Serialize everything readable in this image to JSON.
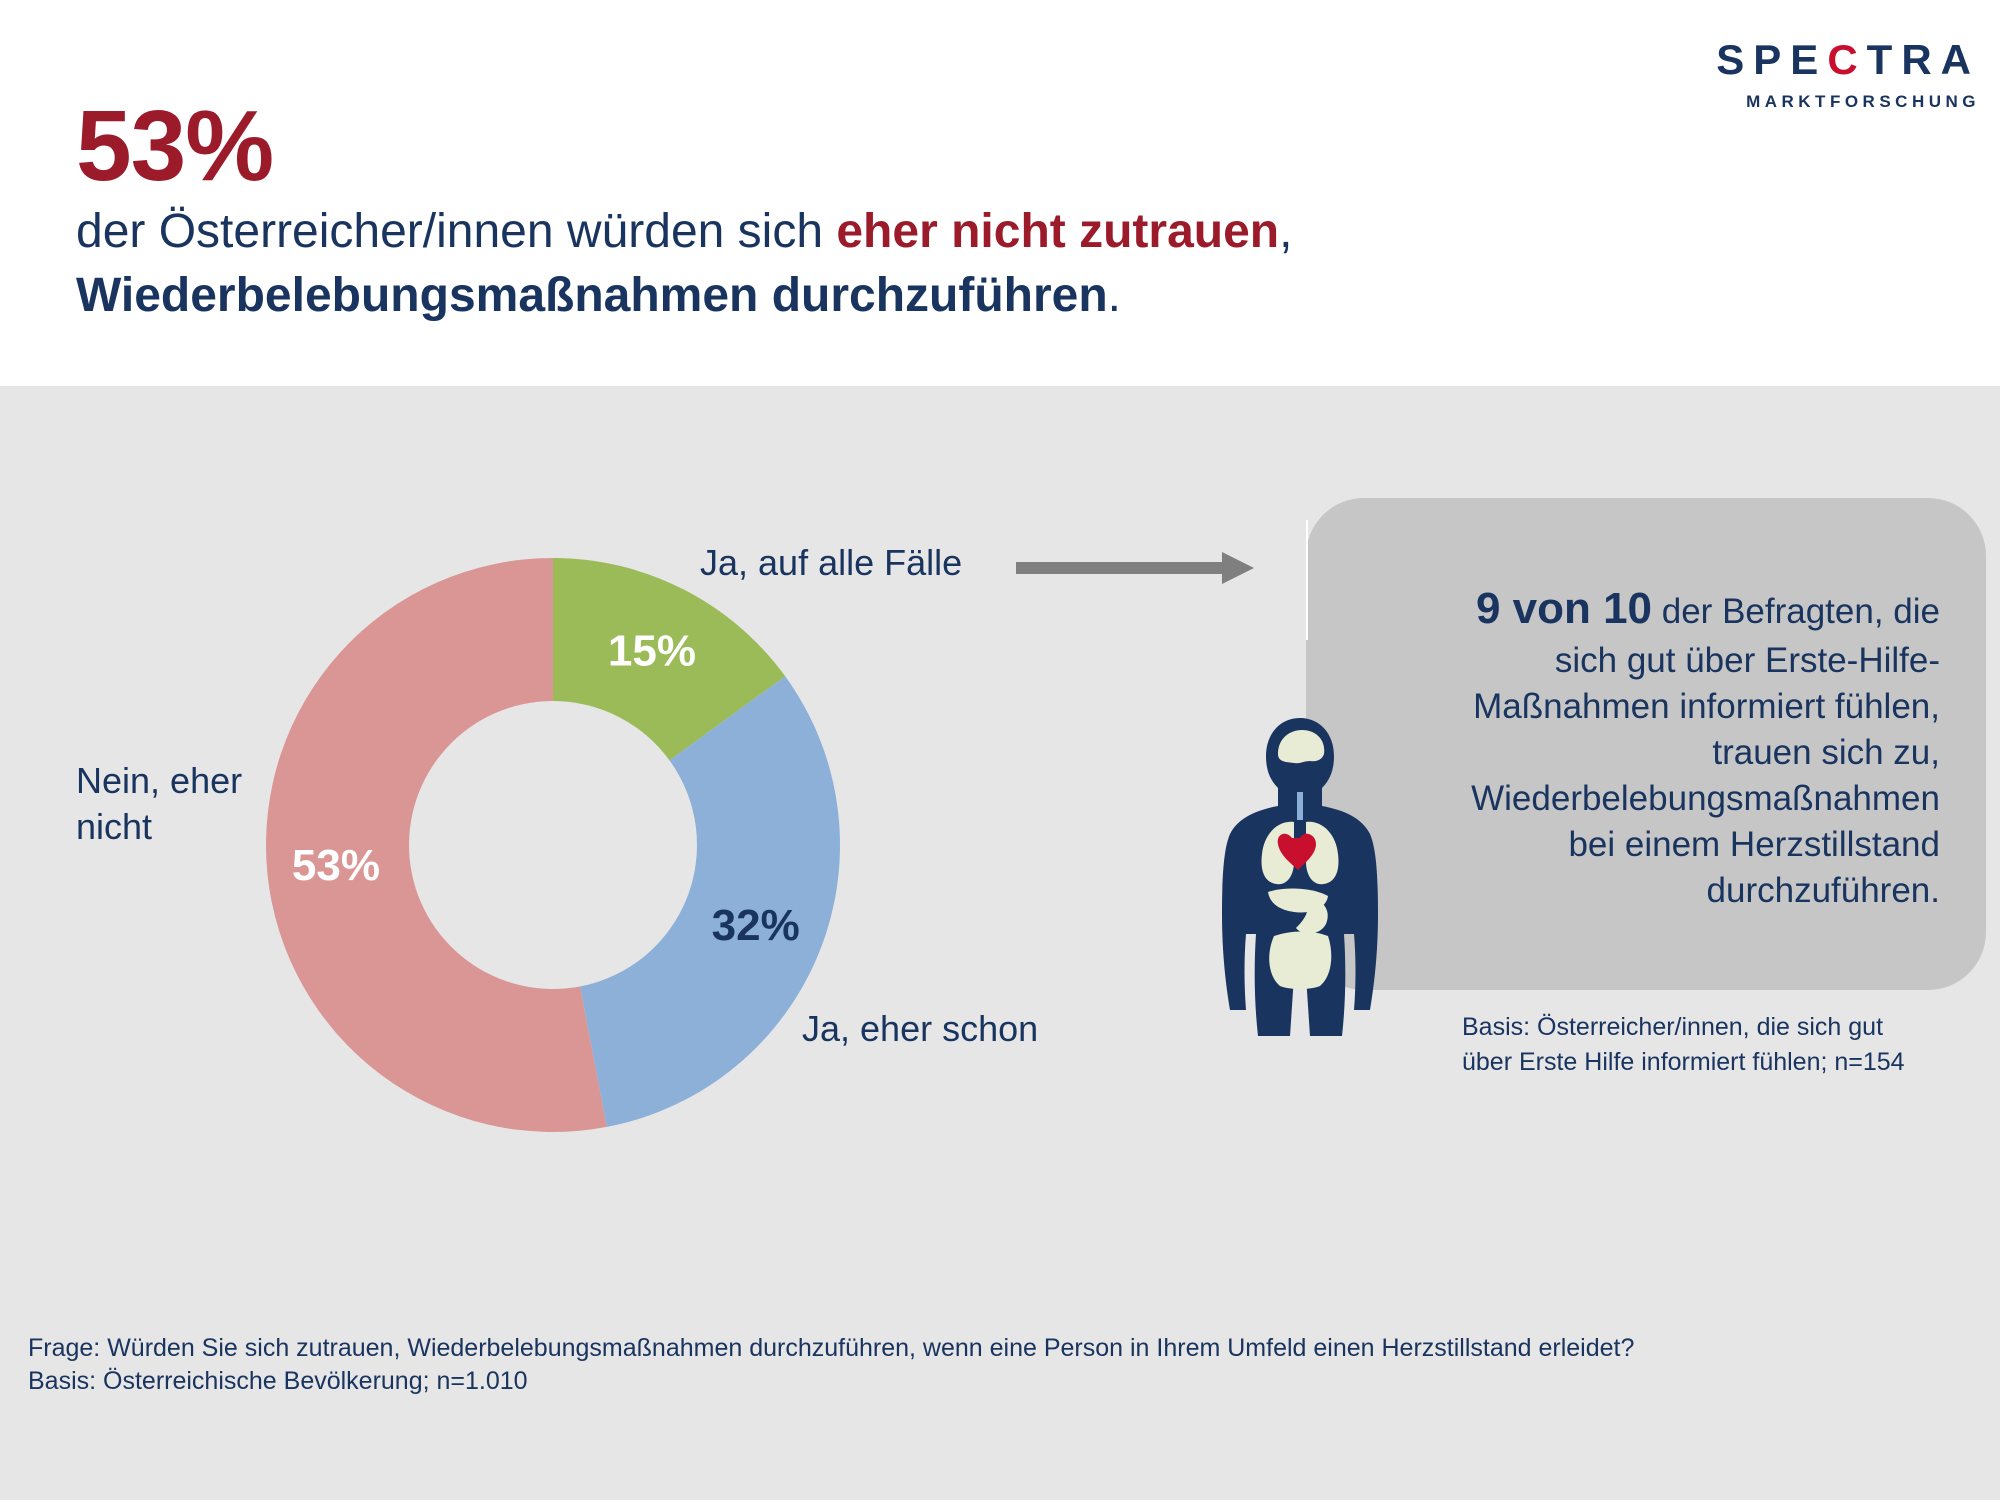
{
  "header": {
    "percent": "53%",
    "line1_prefix": "der Österreicher/innen würden sich ",
    "line1_highlight": "eher nicht zutrauen",
    "line1_suffix": ",",
    "line2_bold": "Wiederbelebungsmaßnahmen durchzuführen",
    "line2_suffix": "."
  },
  "logo": {
    "word_part1": "SPE",
    "word_part2": "C",
    "word_part3": "TRA",
    "subtitle": "MARKTFORSCHUNG"
  },
  "chart_data": {
    "type": "pie",
    "donut": true,
    "slices": [
      {
        "name": "Ja, auf alle Fälle",
        "value": 15,
        "label": "15%",
        "color": "#9bbb59",
        "label_color": "#ffffff"
      },
      {
        "name": "Ja, eher schon",
        "value": 32,
        "label": "32%",
        "color": "#8db0d8",
        "label_color": "#1a3460"
      },
      {
        "name": "Nein, eher nicht",
        "value": 53,
        "label": "53%",
        "color": "#d99694",
        "label_color": "#ffffff"
      }
    ],
    "legend": "labels next to slices"
  },
  "labels": {
    "ja_alle": "Ja, auf alle Fälle",
    "ja_eher": "Ja, eher schon",
    "nein_line1": "Nein, eher",
    "nein_line2": "nicht"
  },
  "callout": {
    "emphasis": "9 von 10",
    "text_line1": " der Befragten, die",
    "text_line2": "sich gut über Erste-Hilfe-",
    "text_line3": "Maßnahmen informiert fühlen,",
    "text_line4": "trauen sich zu,",
    "text_line5": "Wiederbelebungsmaßnahmen",
    "text_line6": "bei einem Herzstillstand",
    "text_line7": "durchzuführen."
  },
  "basis_right": {
    "line1": "Basis: Österreicher/innen, die sich gut",
    "line2": "über Erste Hilfe informiert fühlen; n=154"
  },
  "footnote": {
    "question": "Frage: Würden Sie sich zutrauen, Wiederbelebungsmaßnahmen durchzuführen, wenn eine Person in Ihrem Umfeld einen Herzstillstand erleidet?",
    "basis": "Basis: Österreichische Bevölkerung; n=1.010"
  },
  "colors": {
    "brand_navy": "#1a3460",
    "brand_red": "#9b1b2a",
    "panel_gray": "#e6e6e6",
    "callout_gray": "#c6c6c6",
    "arrow_gray": "#7f7f7f"
  },
  "icons": {
    "arrow": "right-arrow-icon",
    "figure": "human-anatomy-icon"
  }
}
